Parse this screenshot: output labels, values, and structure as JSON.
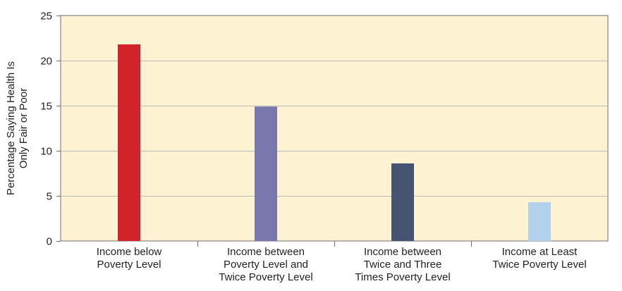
{
  "chart_data": {
    "type": "bar",
    "title": "",
    "xlabel": "",
    "ylabel_lines": [
      "Percentage Saying Health Is",
      "Only Fair or Poor"
    ],
    "ylim": [
      0,
      25
    ],
    "yticks": [
      0,
      5,
      10,
      15,
      20,
      25
    ],
    "grid": true,
    "categories": [
      [
        "Income below",
        "Poverty Level"
      ],
      [
        "Income between",
        "Poverty Level and",
        "Twice Poverty Level"
      ],
      [
        "Income between",
        "Twice and Three",
        "Times Poverty Level"
      ],
      [
        "Income at Least",
        "Twice Poverty Level"
      ]
    ],
    "values": [
      21.8,
      14.9,
      8.6,
      4.3
    ],
    "bar_colors": [
      "#d2232a",
      "#7878ad",
      "#465372",
      "#b2d2ec"
    ],
    "plot_background": "#fdf3d3",
    "gridline_color": "#b8b8b8"
  }
}
